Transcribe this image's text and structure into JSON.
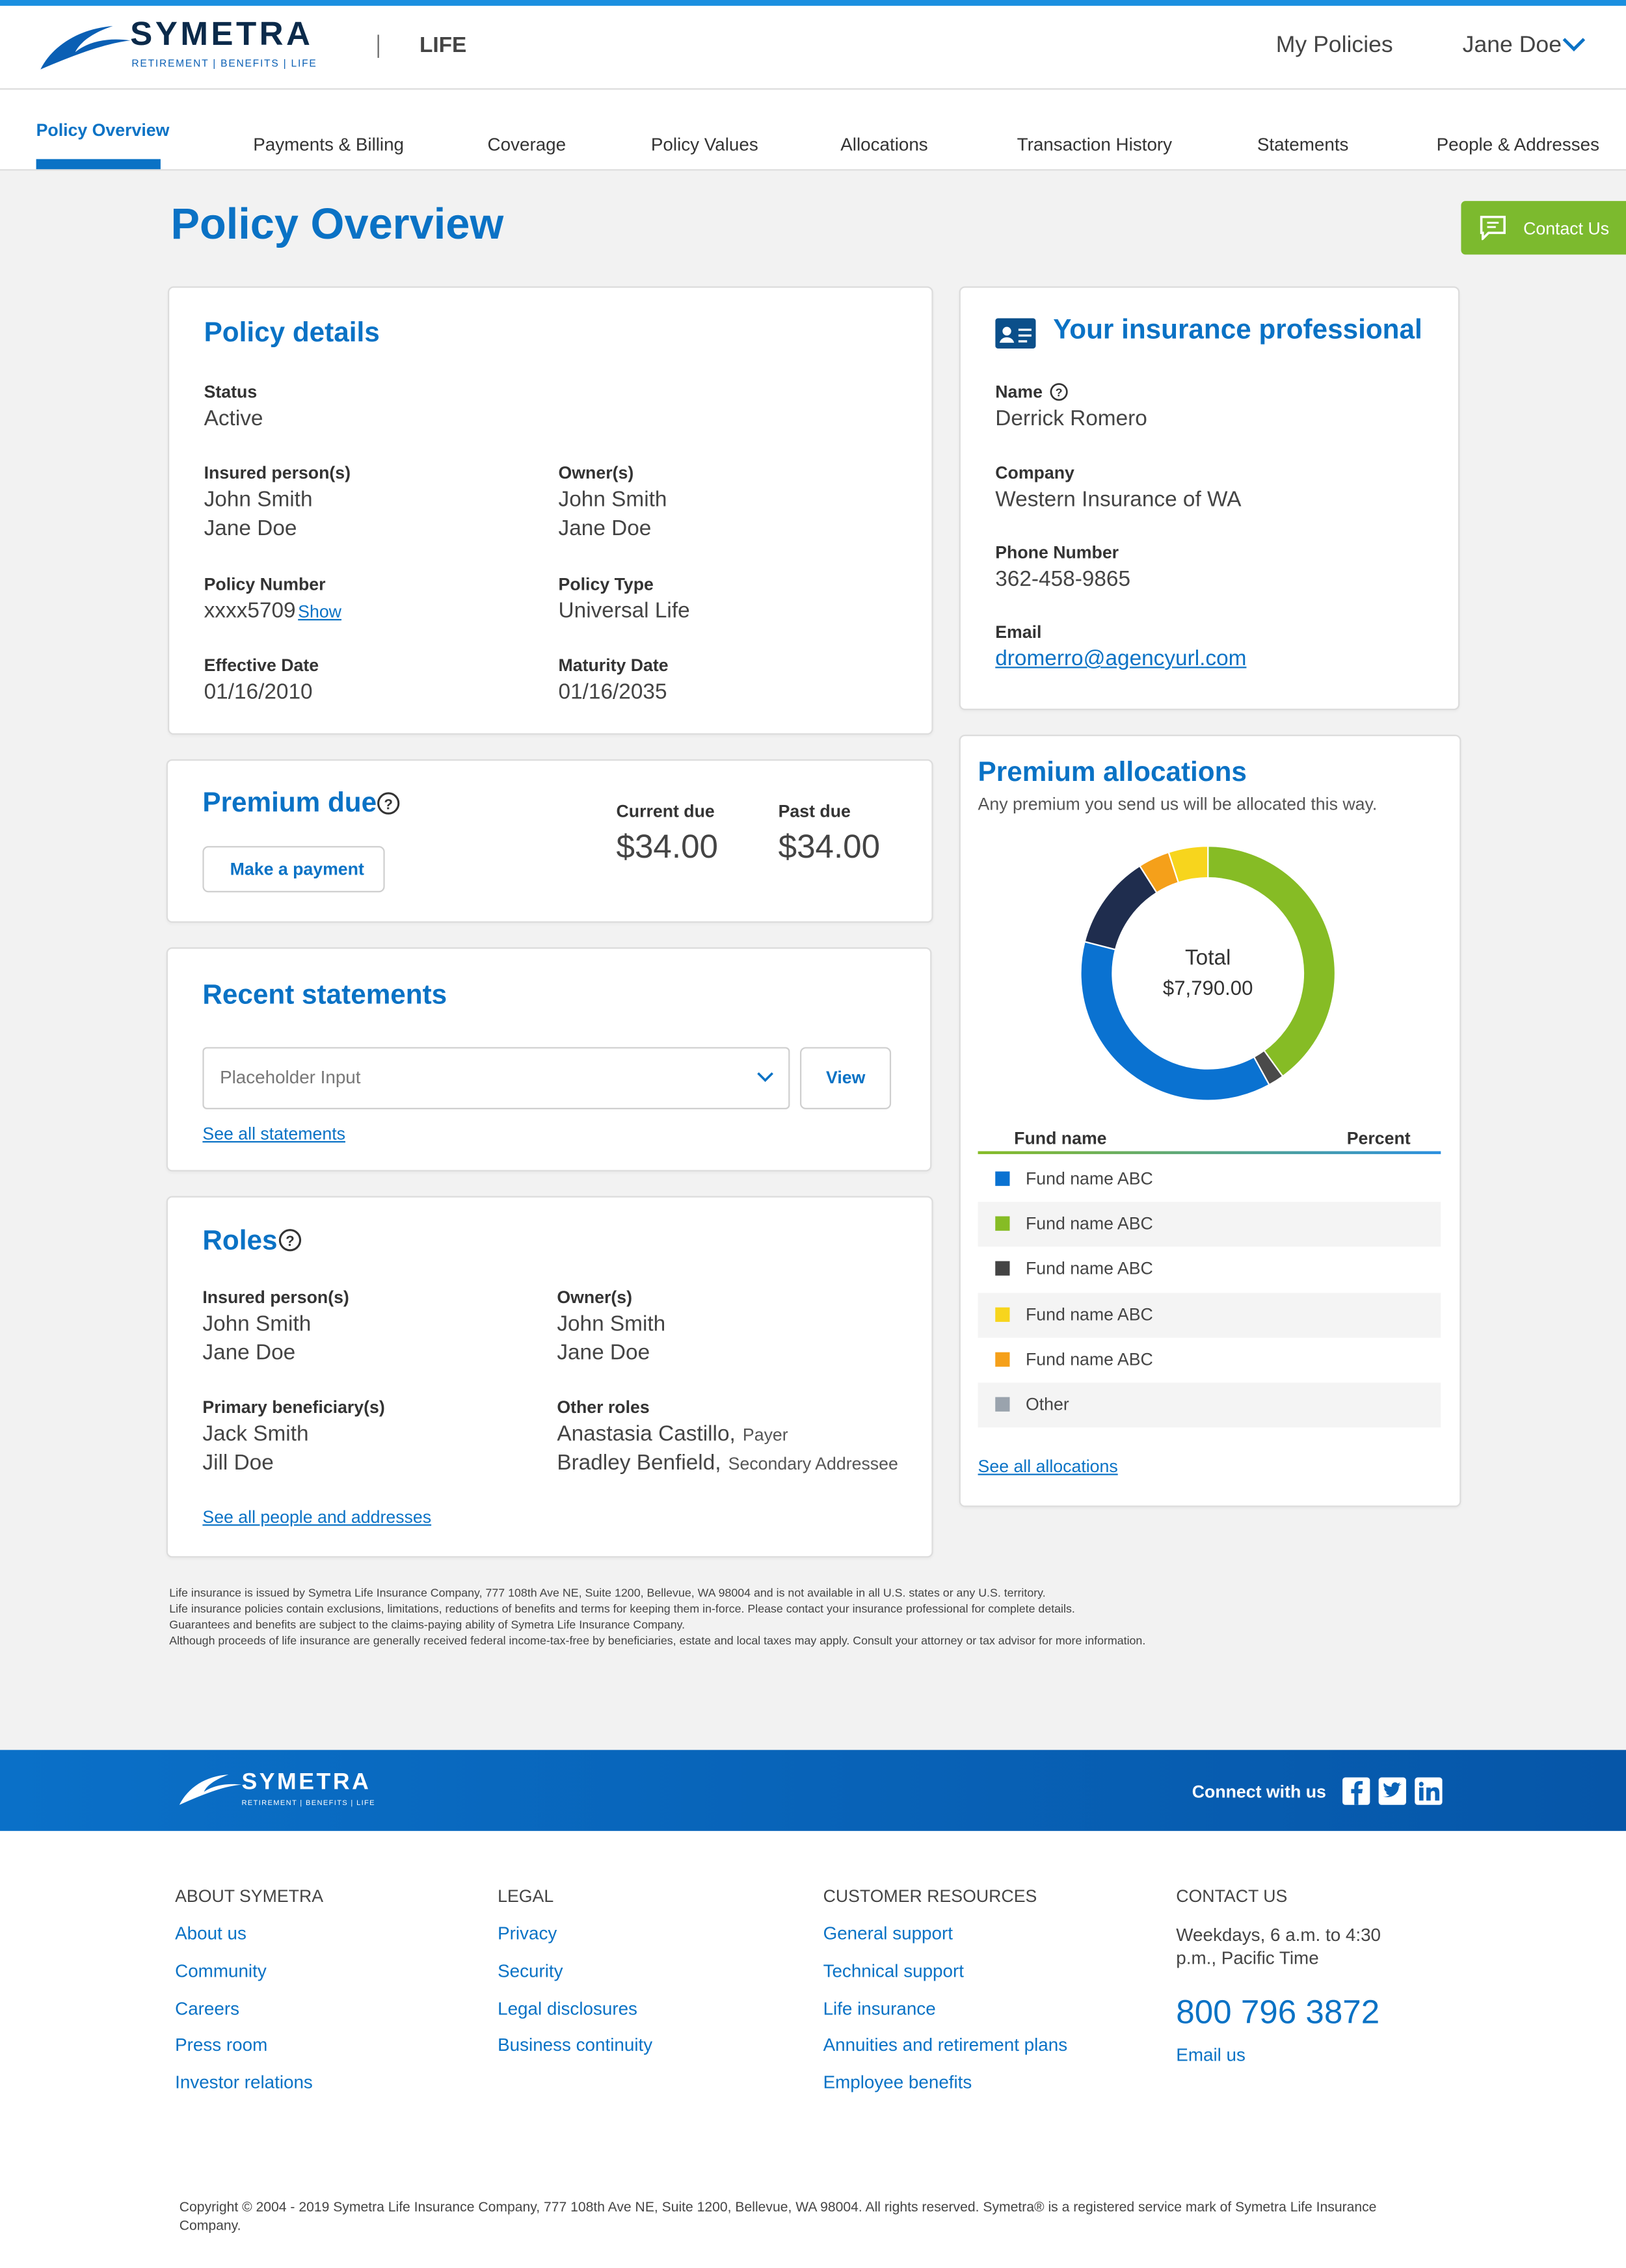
{
  "header": {
    "logo": "SYMETRA",
    "logo_tagline": "RETIREMENT | BENEFITS | LIFE",
    "product": "LIFE",
    "my_policies": "My Policies",
    "user": "Jane Doe"
  },
  "tabs": [
    "Policy Overview",
    "Payments & Billing",
    "Coverage",
    "Policy Values",
    "Allocations",
    "Transaction History",
    "Statements",
    "People & Addresses"
  ],
  "page_title": "Policy Overview",
  "contact_button": "Contact Us",
  "policy_details": {
    "title": "Policy details",
    "fields": [
      {
        "label": "Status",
        "values": [
          "Active"
        ]
      },
      {
        "label": "Insured person(s)",
        "values": [
          "John Smith",
          "Jane Doe"
        ]
      },
      {
        "label": "Owner(s)",
        "values": [
          "John Smith",
          "Jane Doe"
        ]
      },
      {
        "label": "Policy Number",
        "values": [
          "xxxx5709"
        ],
        "link": "Show"
      },
      {
        "label": "Policy Type",
        "values": [
          "Universal Life"
        ]
      },
      {
        "label": "Effective Date",
        "values": [
          "01/16/2010"
        ]
      },
      {
        "label": "Maturity Date",
        "values": [
          "01/16/2035"
        ]
      }
    ]
  },
  "insurance_professional": {
    "title": "Your insurance professional",
    "fields": [
      {
        "label": "Name",
        "values": [
          "Derrick Romero"
        ]
      },
      {
        "label": "Company",
        "values": [
          "Western Insurance of WA"
        ]
      },
      {
        "label": "Phone Number",
        "values": [
          "362-458-9865"
        ]
      },
      {
        "label": "Email",
        "values": [
          "dromerro@agencyurl.com"
        ],
        "is_link": true
      }
    ]
  },
  "premium_due": {
    "title": "Premium due",
    "button": "Make a payment",
    "current_label": "Current due",
    "current_value": "$34.00",
    "past_label": "Past due",
    "past_value": "$34.00"
  },
  "recent_statements": {
    "title": "Recent statements",
    "placeholder": "Placeholder Input",
    "button": "View",
    "link": "See all statements"
  },
  "roles": {
    "title": "Roles",
    "fields": [
      {
        "label": "Insured person(s)",
        "values": [
          "John Smith",
          "Jane Doe"
        ]
      },
      {
        "label": "Owner(s)",
        "values": [
          "John Smith",
          "Jane Doe"
        ]
      },
      {
        "label": "Primary beneficiary(s)",
        "values": [
          "Jack Smith",
          "Jill Doe"
        ]
      },
      {
        "label": "Other roles",
        "values": [
          {
            "name": "Anastasia Castillo,",
            "role": "Payer"
          },
          {
            "name": "Bradley Benfield,",
            "role": "Secondary Addressee"
          }
        ]
      }
    ],
    "link": "See all people and addresses"
  },
  "premium_allocations": {
    "title": "Premium allocations",
    "subtitle": "Any premium you send us will be allocated this way.",
    "chart_data": {
      "type": "donut",
      "values": [
        40,
        2,
        37,
        12,
        4,
        5
      ],
      "colors": [
        "#86bc25",
        "#4a4a4a",
        "#0a72d1",
        "#1f2d4e",
        "#f5a01a",
        "#f7d51d"
      ],
      "center_label": "Total",
      "center_value": "$7,790.00"
    },
    "table_headers": [
      "Fund name",
      "Percent"
    ],
    "funds": [
      {
        "name": "Fund name ABC",
        "color": "#0a72d1"
      },
      {
        "name": "Fund name ABC",
        "color": "#86bc25"
      },
      {
        "name": "Fund name ABC",
        "color": "#444444"
      },
      {
        "name": "Fund name ABC",
        "color": "#f7d51d"
      },
      {
        "name": "Fund name ABC",
        "color": "#f5a01a"
      },
      {
        "name": "Other",
        "color": "#9aa3ad"
      }
    ],
    "link": "See all allocations"
  },
  "disclaimer": [
    "Life insurance is issued by Symetra Life Insurance Company, 777 108th Ave NE, Suite 1200, Bellevue, WA 98004 and is not available in all U.S. states or any U.S. territory.",
    "Life insurance policies contain exclusions, limitations, reductions of benefits and terms for keeping them in-force. Please contact your insurance professional for complete details.",
    "Guarantees and benefits are subject to the claims-paying ability of Symetra Life Insurance Company.",
    "Although proceeds of life insurance are generally received federal income-tax-free by beneficiaries, estate and local taxes may apply. Consult your attorney or tax advisor for more information."
  ],
  "footer": {
    "logo": "SYMETRA",
    "logo_tagline": "RETIREMENT | BENEFITS | LIFE",
    "connect": "Connect with us",
    "columns": [
      {
        "heading": "ABOUT SYMETRA",
        "links": [
          "About us",
          "Community",
          "Careers",
          "Press room",
          "Investor relations"
        ]
      },
      {
        "heading": "LEGAL",
        "links": [
          "Privacy",
          "Security",
          "Legal disclosures",
          "Business continuity"
        ]
      },
      {
        "heading": "CUSTOMER RESOURCES",
        "links": [
          "General support",
          "Technical support",
          "Life insurance",
          "Annuities and retirement plans",
          "Employee benefits"
        ]
      }
    ],
    "contact": {
      "heading": "CONTACT US",
      "hours": "Weekdays, 6 a.m. to 4:30 p.m., Pacific Time",
      "phone": "800 796 3872",
      "email": "Email us"
    },
    "copyright": "Copyright © 2004 - 2019 Symetra Life Insurance Company, 777 108th Ave NE, Suite 1200, Bellevue, WA 98004. All rights reserved. Symetra® is a registered service mark of Symetra Life Insurance Company."
  }
}
